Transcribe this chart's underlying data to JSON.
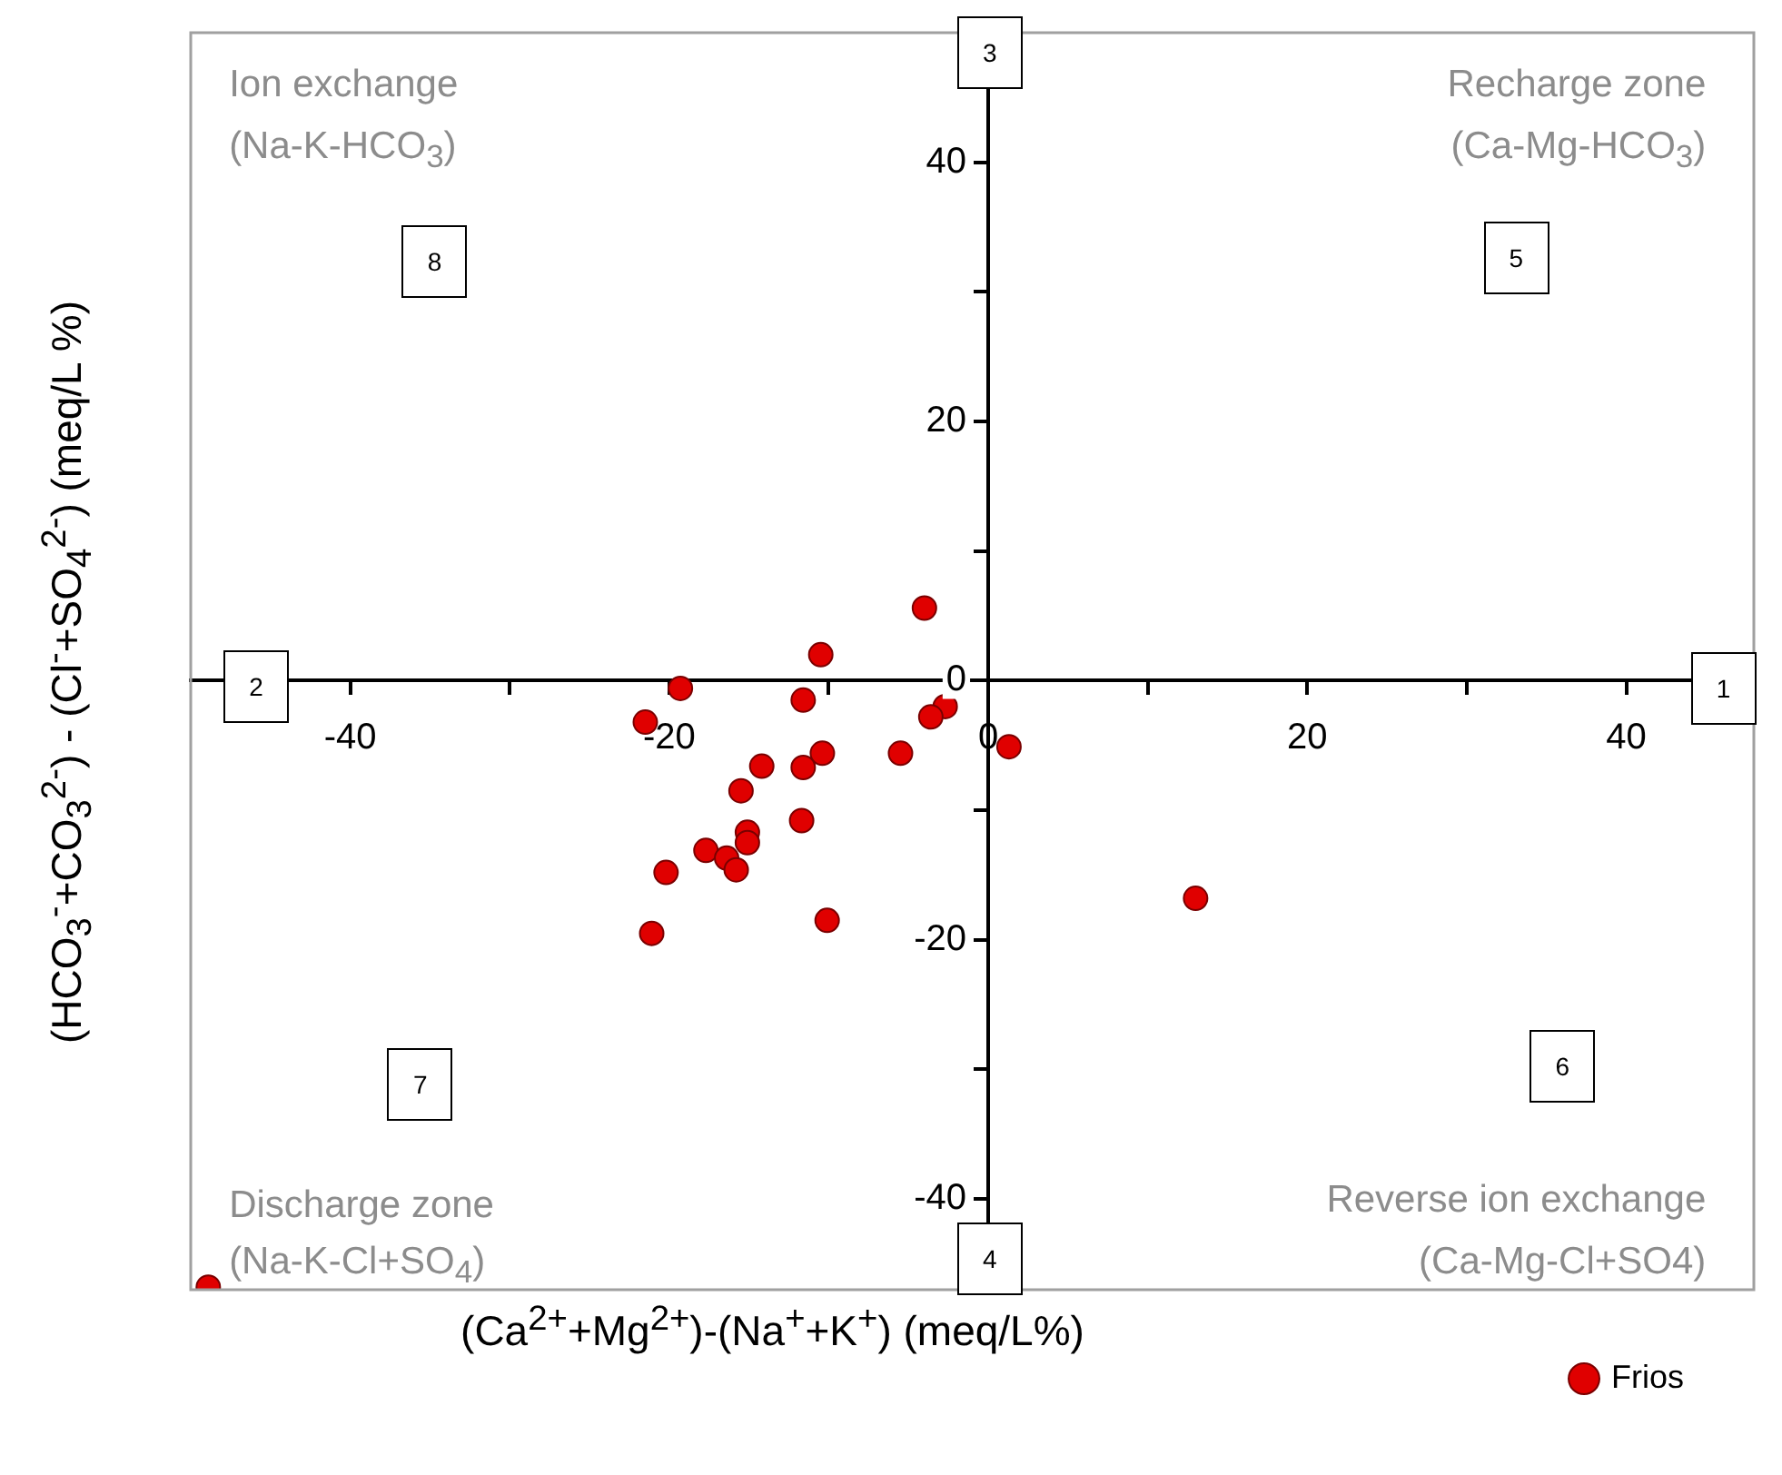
{
  "chart_data": {
    "type": "scatter",
    "xlabel": "(Ca$^{2+}$+Mg$^{2+}$)-(Na$^{+}$+K$^{+}$) (meq/L%)",
    "ylabel": "(HCO$_{3}$$^{-}$+CO$_{3}$$^{2-}$) - (Cl$^{-}$+SO$_{4}$$^{2-}$) (meq/L %)",
    "xlim": [
      -50,
      48
    ],
    "ylim": [
      -47,
      50
    ],
    "xticks": [
      -40,
      {
        "value": -30,
        "label": null
      },
      -20,
      {
        "value": -10,
        "label": null
      },
      0,
      {
        "value": 10,
        "label": null
      },
      20,
      {
        "value": 30,
        "label": null
      },
      40
    ],
    "yticks": [
      -40,
      {
        "value": -30,
        "label": null
      },
      -20,
      {
        "value": -10,
        "label": null
      },
      0,
      {
        "value": 10,
        "label": null
      },
      20,
      {
        "value": 30,
        "label": null
      },
      40
    ],
    "grid": false,
    "legend": "bottom right",
    "marker": "circle",
    "series": [
      {
        "name": "Frios",
        "color": "#e00000",
        "x": [
          -4.0,
          -10.5,
          -19.3,
          -21.5,
          -11.6,
          -2.7,
          -3.6,
          1.3,
          -5.5,
          -10.4,
          -11.6,
          -14.2,
          -15.5,
          -11.7,
          -15.1,
          -15.1,
          -17.7,
          -16.4,
          -15.8,
          -20.2,
          -10.1,
          -21.1,
          13.0,
          -48.9
        ],
        "values": [
          5.6,
          2.0,
          -0.6,
          -3.2,
          -1.5,
          -2.0,
          -2.8,
          -5.1,
          -5.6,
          -5.6,
          -6.7,
          -6.6,
          -8.5,
          -10.8,
          -11.7,
          -12.5,
          -13.1,
          -13.7,
          -14.6,
          -14.8,
          -18.5,
          -19.5,
          -16.8,
          -46.8
        ]
      }
    ],
    "annotations": [
      "Ion exchange",
      "(Na-K-HCO$_{3}$)",
      "Recharge zone",
      "(Ca-Mg-HCO$_{3}$)",
      "Discharge zone",
      "(Na-K-Cl+SO$_{4}$)",
      "Reverse ion exchange",
      "(Ca-Mg-Cl+SO4)",
      "1",
      "2",
      "3",
      "4",
      "5",
      "6",
      "7",
      "8"
    ]
  }
}
